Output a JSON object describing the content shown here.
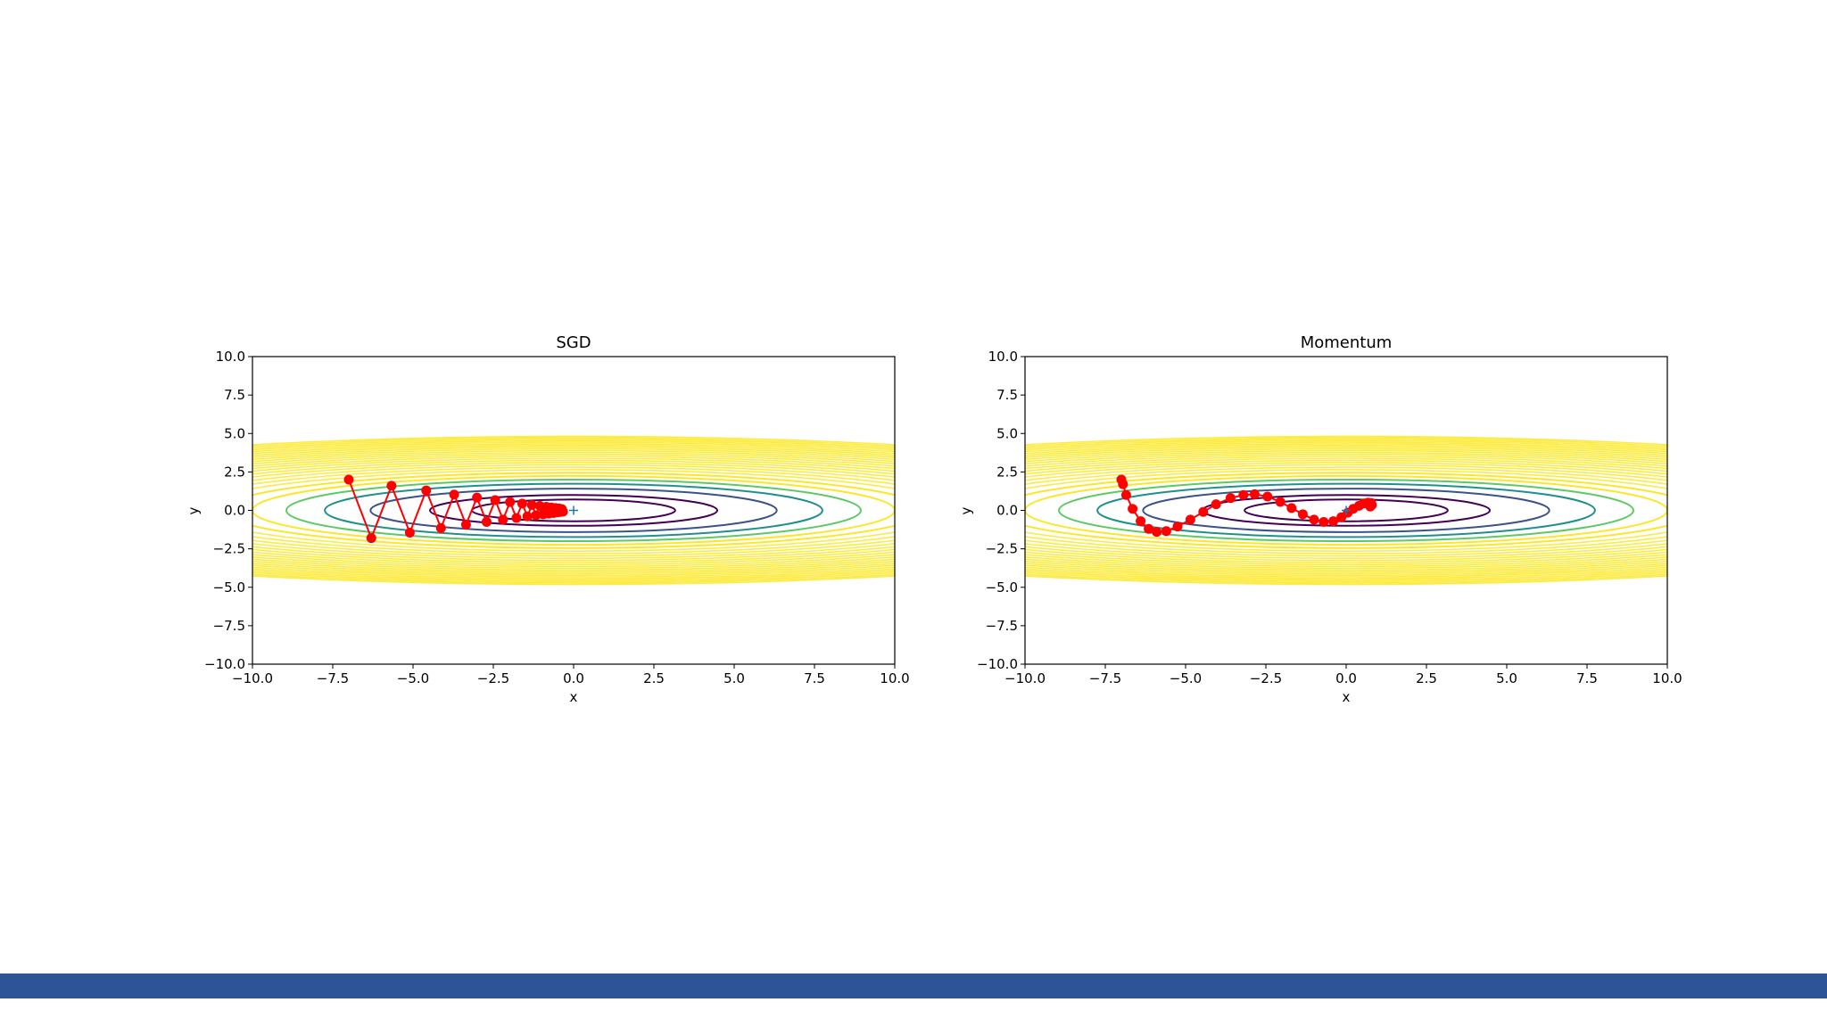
{
  "colors": {
    "accent_bar": "#2c5497",
    "trajectory": "#ff0000",
    "minimum_marker": "#1f77b4",
    "contours": [
      "#440154",
      "#3b528b",
      "#21908d",
      "#5dc963",
      "#fde725"
    ]
  },
  "chart_data": [
    {
      "type": "line",
      "title": "SGD",
      "xlabel": "x",
      "ylabel": "y",
      "xlim": [
        -10,
        10
      ],
      "ylim": [
        -10,
        10
      ],
      "xticks": [
        "−10.0",
        "−7.5",
        "−5.0",
        "−2.5",
        "0.0",
        "2.5",
        "5.0",
        "7.5",
        "10.0"
      ],
      "yticks": [
        "10.0",
        "7.5",
        "5.0",
        "2.5",
        "0.0",
        "−2.5",
        "−5.0",
        "−7.5",
        "−10.0"
      ],
      "grid": false,
      "function": "f(x, y) = x^2/20 + y^2",
      "minimum": [
        0,
        0
      ],
      "contour_levels": [
        0.5,
        1.0,
        2.0,
        3.0,
        4.0,
        5.0,
        6.0
      ],
      "series": [
        {
          "x": [
            -7.0,
            -6.3,
            -5.67,
            -5.1,
            -4.59,
            -4.13,
            -3.72,
            -3.35,
            -3.01,
            -2.71,
            -2.44,
            -2.2,
            -1.98,
            -1.78,
            -1.6,
            -1.44,
            -1.3,
            -1.17,
            -1.05,
            -0.95,
            -0.85,
            -0.77,
            -0.69,
            -0.62,
            -0.56,
            -0.5,
            -0.45,
            -0.41,
            -0.37,
            -0.33
          ],
          "y": [
            2.0,
            -1.8,
            1.6,
            -1.45,
            1.3,
            -1.15,
            1.03,
            -0.93,
            0.83,
            -0.75,
            0.67,
            -0.6,
            0.54,
            -0.49,
            0.44,
            -0.39,
            0.35,
            -0.32,
            0.29,
            -0.26,
            0.23,
            -0.21,
            0.19,
            -0.17,
            0.15,
            -0.13,
            0.12,
            -0.1,
            0.09,
            -0.08
          ]
        }
      ]
    },
    {
      "type": "line",
      "title": "Momentum",
      "xlabel": "x",
      "ylabel": "y",
      "xlim": [
        -10,
        10
      ],
      "ylim": [
        -10,
        10
      ],
      "xticks": [
        "−10.0",
        "−7.5",
        "−5.0",
        "−2.5",
        "0.0",
        "2.5",
        "5.0",
        "7.5",
        "10.0"
      ],
      "yticks": [
        "10.0",
        "7.5",
        "5.0",
        "2.5",
        "0.0",
        "−2.5",
        "−5.0",
        "−7.5",
        "−10.0"
      ],
      "grid": false,
      "function": "f(x, y) = x^2/20 + y^2",
      "minimum": [
        0,
        0
      ],
      "contour_levels": [
        0.5,
        1.0,
        2.0,
        3.0,
        4.0,
        5.0,
        6.0
      ],
      "series": [
        {
          "x": [
            -7.0,
            -6.95,
            -6.85,
            -6.65,
            -6.4,
            -6.15,
            -5.9,
            -5.6,
            -5.25,
            -4.85,
            -4.45,
            -4.05,
            -3.6,
            -3.2,
            -2.85,
            -2.45,
            -2.05,
            -1.7,
            -1.35,
            -1.0,
            -0.7,
            -0.4,
            -0.15,
            0.05,
            0.22,
            0.4,
            0.55,
            0.68,
            0.78,
            0.8,
            0.75
          ],
          "y": [
            2.0,
            1.7,
            1.0,
            0.1,
            -0.7,
            -1.2,
            -1.4,
            -1.35,
            -1.05,
            -0.6,
            -0.1,
            0.4,
            0.8,
            1.0,
            1.05,
            0.9,
            0.55,
            0.15,
            -0.25,
            -0.6,
            -0.75,
            -0.7,
            -0.45,
            -0.15,
            0.1,
            0.3,
            0.45,
            0.5,
            0.48,
            0.35,
            0.25
          ]
        }
      ]
    }
  ]
}
